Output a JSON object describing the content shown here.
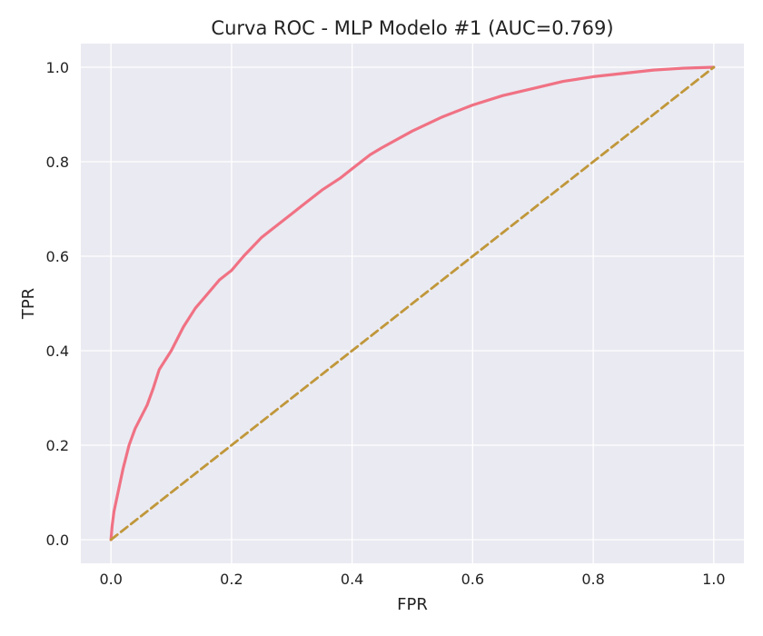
{
  "chart_data": {
    "type": "line",
    "title": "Curva ROC - MLP Modelo #1 (AUC=0.769)",
    "xlabel": "FPR",
    "ylabel": "TPR",
    "xlim": [
      -0.05,
      1.05
    ],
    "ylim": [
      -0.05,
      1.05
    ],
    "xticks": [
      "0.0",
      "0.2",
      "0.4",
      "0.6",
      "0.8",
      "1.0"
    ],
    "yticks": [
      "0.0",
      "0.2",
      "0.4",
      "0.6",
      "0.8",
      "1.0"
    ],
    "grid": true,
    "series": [
      {
        "color": "#f07284",
        "style": "solid",
        "x": [
          0.0,
          0.002,
          0.005,
          0.01,
          0.015,
          0.02,
          0.03,
          0.04,
          0.05,
          0.06,
          0.07,
          0.08,
          0.09,
          0.1,
          0.12,
          0.14,
          0.16,
          0.18,
          0.2,
          0.22,
          0.25,
          0.28,
          0.3,
          0.32,
          0.35,
          0.38,
          0.4,
          0.43,
          0.45,
          0.5,
          0.55,
          0.6,
          0.65,
          0.7,
          0.75,
          0.8,
          0.85,
          0.9,
          0.95,
          1.0
        ],
        "y": [
          0.0,
          0.03,
          0.06,
          0.09,
          0.12,
          0.15,
          0.2,
          0.235,
          0.26,
          0.285,
          0.32,
          0.36,
          0.38,
          0.4,
          0.45,
          0.49,
          0.52,
          0.55,
          0.57,
          0.6,
          0.64,
          0.67,
          0.69,
          0.71,
          0.74,
          0.765,
          0.785,
          0.815,
          0.83,
          0.865,
          0.895,
          0.92,
          0.94,
          0.955,
          0.97,
          0.98,
          0.987,
          0.994,
          0.998,
          1.0
        ]
      },
      {
        "color": "#c0973a",
        "style": "dashed",
        "x": [
          0.0,
          1.0
        ],
        "y": [
          0.0,
          1.0
        ]
      }
    ]
  }
}
